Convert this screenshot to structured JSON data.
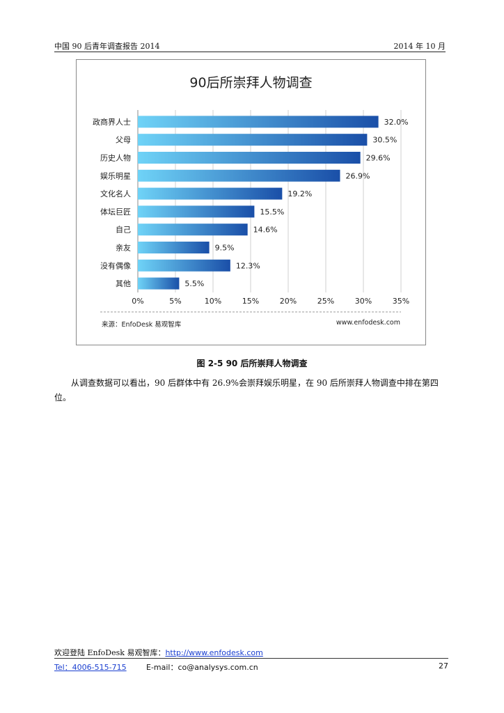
{
  "header": {
    "left": "中国 90 后青年调查报告 2014",
    "right": "2014 年 10 月"
  },
  "chart_data": {
    "type": "bar",
    "orientation": "horizontal",
    "title": "90后所崇拜人物调查",
    "categories": [
      "政商界人士",
      "父母",
      "历史人物",
      "娱乐明星",
      "文化名人",
      "体坛巨匠",
      "自己",
      "亲友",
      "没有偶像",
      "其他"
    ],
    "values": [
      32.0,
      30.5,
      29.6,
      26.9,
      19.2,
      15.5,
      14.6,
      9.5,
      12.3,
      5.5
    ],
    "value_labels": [
      "32.0%",
      "30.5%",
      "29.6%",
      "26.9%",
      "19.2%",
      "15.5%",
      "14.6%",
      "9.5%",
      "12.3%",
      "5.5%"
    ],
    "xlim": [
      0,
      35
    ],
    "xticks": [
      "0%",
      "5%",
      "10%",
      "15%",
      "20%",
      "25%",
      "30%",
      "35%"
    ],
    "grid": true,
    "colors": {
      "bar_light": "#6fd3f7",
      "bar_dark": "#1a4fa8"
    },
    "source": "来源：EnfoDesk 易观智库",
    "site": "www.enfodesk.com"
  },
  "caption": "图 2-5    90 后所崇拜人物调查",
  "paragraph": "从调查数据可以看出，90 后群体中有 26.9%会崇拜娱乐明星，在 90 后所崇拜人物调查中排在第四位。",
  "footer": {
    "welcome": "欢迎登陆 EnfoDesk 易观智库：",
    "url": "http://www.enfodesk.com",
    "tel": "Tel：4006-515-715",
    "email": "E-mail：co@analysys.com.cn",
    "page": "27"
  }
}
